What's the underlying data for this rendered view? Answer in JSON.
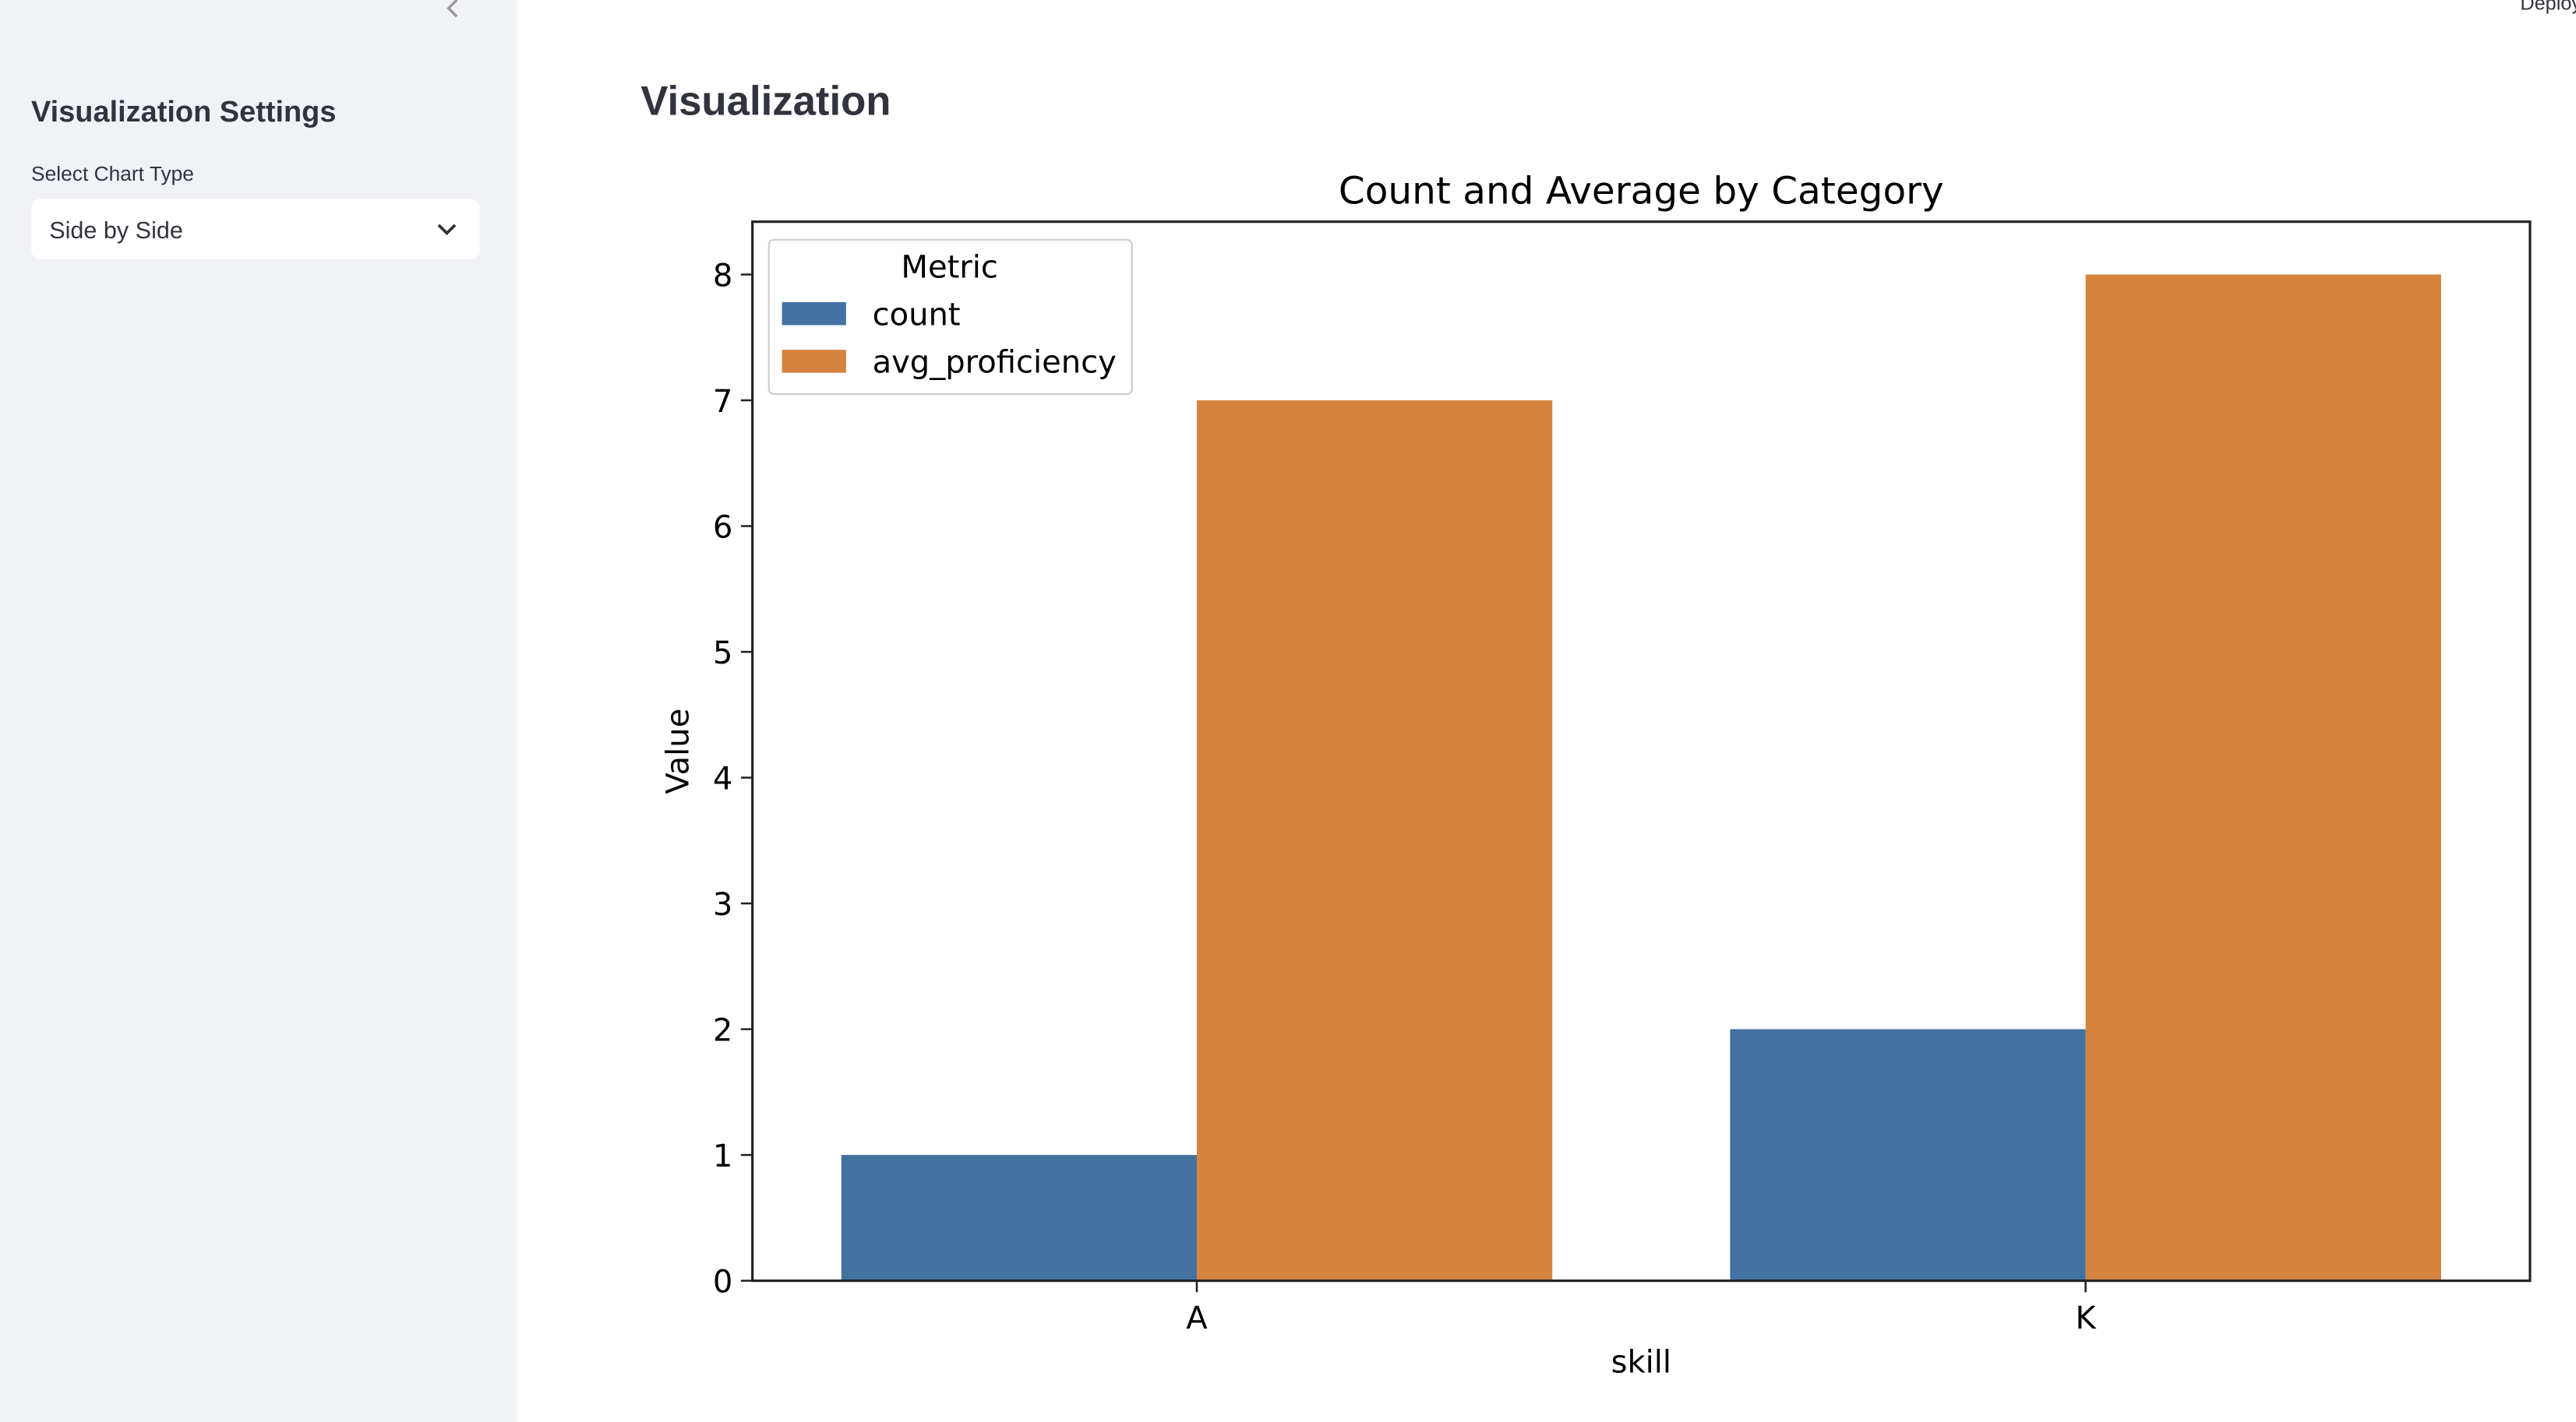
{
  "sidebar": {
    "title": "Visualization Settings",
    "select_label": "Select Chart Type",
    "select_value": "Side by Side"
  },
  "header": {
    "action": "Deploy"
  },
  "main": {
    "title": "Visualization"
  },
  "chart_data": {
    "type": "bar",
    "title": "Count and Average by Category",
    "xlabel": "skill",
    "ylabel": "Value",
    "categories": [
      "A",
      "K"
    ],
    "series": [
      {
        "name": "count",
        "color": "#4372a0",
        "values": [
          1,
          2
        ]
      },
      {
        "name": "avg_proficiency",
        "color": "#d4843f",
        "values": [
          7,
          8
        ]
      }
    ],
    "ylim": [
      0,
      8.42
    ],
    "yticks": [
      0,
      1,
      2,
      3,
      4,
      5,
      6,
      7,
      8
    ],
    "legend_title": "Metric",
    "legend": "upper left"
  }
}
